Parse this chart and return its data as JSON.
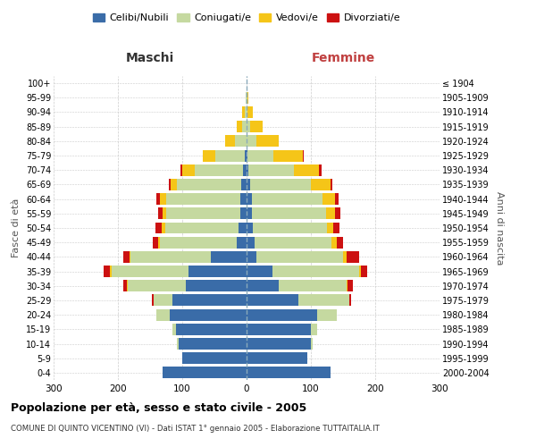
{
  "age_groups": [
    "0-4",
    "5-9",
    "10-14",
    "15-19",
    "20-24",
    "25-29",
    "30-34",
    "35-39",
    "40-44",
    "45-49",
    "50-54",
    "55-59",
    "60-64",
    "65-69",
    "70-74",
    "75-79",
    "80-84",
    "85-89",
    "90-94",
    "95-99",
    "100+"
  ],
  "birth_years": [
    "2000-2004",
    "1995-1999",
    "1990-1994",
    "1985-1989",
    "1980-1984",
    "1975-1979",
    "1970-1974",
    "1965-1969",
    "1960-1964",
    "1955-1959",
    "1950-1954",
    "1945-1949",
    "1940-1944",
    "1935-1939",
    "1930-1934",
    "1925-1929",
    "1920-1924",
    "1915-1919",
    "1910-1914",
    "1905-1909",
    "≤ 1904"
  ],
  "male": {
    "celibi": [
      130,
      100,
      105,
      110,
      120,
      115,
      95,
      90,
      55,
      15,
      12,
      10,
      10,
      8,
      5,
      3,
      0,
      0,
      0,
      0,
      0
    ],
    "coniugati": [
      0,
      0,
      3,
      5,
      20,
      30,
      90,
      120,
      125,
      120,
      115,
      115,
      115,
      100,
      75,
      45,
      18,
      7,
      3,
      1,
      0
    ],
    "vedovi": [
      0,
      0,
      0,
      0,
      0,
      0,
      1,
      2,
      2,
      3,
      5,
      5,
      10,
      10,
      20,
      20,
      15,
      8,
      4,
      1,
      0
    ],
    "divorziati": [
      0,
      0,
      0,
      0,
      0,
      2,
      5,
      10,
      10,
      8,
      10,
      8,
      5,
      3,
      3,
      0,
      0,
      0,
      0,
      0,
      0
    ]
  },
  "female": {
    "nubili": [
      130,
      95,
      100,
      100,
      110,
      80,
      50,
      40,
      15,
      12,
      10,
      8,
      8,
      5,
      3,
      2,
      0,
      0,
      0,
      0,
      0
    ],
    "coniugate": [
      0,
      0,
      3,
      10,
      30,
      80,
      105,
      135,
      135,
      120,
      115,
      115,
      110,
      95,
      70,
      40,
      15,
      5,
      2,
      1,
      0
    ],
    "vedove": [
      0,
      0,
      0,
      0,
      0,
      0,
      2,
      3,
      5,
      8,
      10,
      15,
      20,
      30,
      40,
      45,
      35,
      20,
      8,
      2,
      0
    ],
    "divorziate": [
      0,
      0,
      0,
      0,
      0,
      2,
      8,
      10,
      20,
      10,
      10,
      8,
      5,
      3,
      3,
      2,
      0,
      0,
      0,
      0,
      0
    ]
  },
  "colors": {
    "celibi": "#3a6ca8",
    "coniugati": "#c5d9a0",
    "vedovi": "#f5c518",
    "divorziati": "#cc1111"
  },
  "title": "Popolazione per età, sesso e stato civile - 2005",
  "subtitle": "COMUNE DI QUINTO VICENTINO (VI) - Dati ISTAT 1° gennaio 2005 - Elaborazione TUTTAITALIA.IT",
  "xlabel_left": "Maschi",
  "xlabel_right": "Femmine",
  "ylabel_left": "Fasce di età",
  "ylabel_right": "Anni di nascita",
  "xlim": 300,
  "legend_labels": [
    "Celibi/Nubili",
    "Coniugati/e",
    "Vedovi/e",
    "Divorziati/e"
  ],
  "bg_color": "#ffffff",
  "grid_color": "#cccccc"
}
